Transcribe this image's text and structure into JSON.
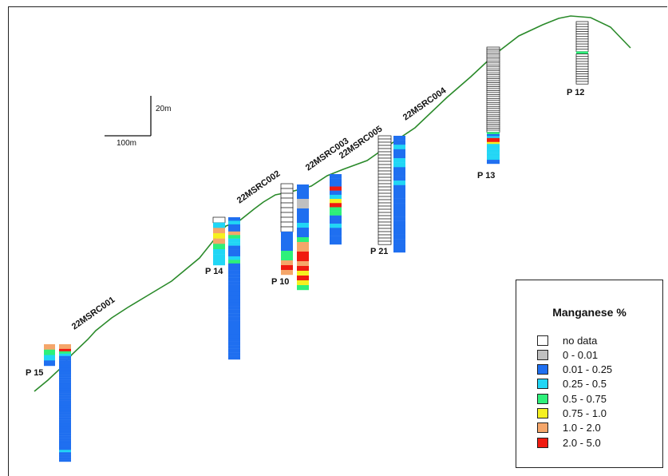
{
  "colors": {
    "no_data": "#ffffff",
    "c0": "#c0c0c0",
    "c1": "#1f6ff0",
    "c2": "#21d6f5",
    "c3": "#2ef07a",
    "c4": "#f5f020",
    "c5": "#f5a66a",
    "c6": "#f01a10",
    "ground": "#2a8a2a"
  },
  "scale": {
    "vertical_label": "20m",
    "horizontal_label": "100m"
  },
  "holes": [
    {
      "label": "22MSRC001",
      "intervals": [
        "c5",
        "c5",
        "c6",
        "c3",
        "c2",
        "c1",
        "c1",
        "c1",
        "c1",
        "c1",
        "c1",
        "c1",
        "c1",
        "c1",
        "c1",
        "c1",
        "c1",
        "c1",
        "c1",
        "c1",
        "c1",
        "c1",
        "c1",
        "c1",
        "c1",
        "c1",
        "c1",
        "c1",
        "c1",
        "c1",
        "c1",
        "c1",
        "c1",
        "c1",
        "c1",
        "c1",
        "c1",
        "c1",
        "c1",
        "c1",
        "c1",
        "c1",
        "c1",
        "c1",
        "c1",
        "c2",
        "c1",
        "c1",
        "c1",
        "c1"
      ]
    },
    {
      "label": "22MSRC002",
      "intervals": [
        "c1",
        "c2",
        "c1",
        "c1",
        "c5",
        "c3",
        "c2",
        "c2",
        "c1",
        "c1",
        "c1",
        "c2",
        "c3",
        "c1",
        "c1",
        "c1",
        "c1",
        "c1",
        "c1",
        "c1",
        "c1",
        "c1",
        "c1",
        "c1",
        "c1",
        "c1",
        "c1",
        "c1",
        "c1",
        "c1",
        "c1",
        "c1",
        "c1",
        "c1",
        "c1",
        "c1",
        "c1",
        "c1",
        "c1",
        "c1"
      ]
    },
    {
      "label": "22MSRC003",
      "intervals": [
        "c1",
        "c1",
        "c1",
        "c0",
        "c0",
        "c1",
        "c1",
        "c1",
        "c2",
        "c1",
        "c1",
        "c3",
        "c5",
        "c5",
        "c6",
        "c6",
        "c5",
        "c6",
        "c4",
        "c6",
        "c4",
        "c3"
      ]
    },
    {
      "label": "22MSRC005",
      "intervals": [
        "c1",
        "c1",
        "c1",
        "c6",
        "c1",
        "c2",
        "c4",
        "c6",
        "c3",
        "c3",
        "c1",
        "c1",
        "c2",
        "c1",
        "c1",
        "c1",
        "c1"
      ]
    },
    {
      "label": "22MSRC004",
      "intervals": [
        "c1",
        "c1",
        "c2",
        "c1",
        "c1",
        "c2",
        "c2",
        "c1",
        "c1",
        "c1",
        "c2",
        "c1",
        "c1",
        "c1",
        "c1",
        "c1",
        "c1",
        "c1",
        "c1",
        "c1",
        "c1",
        "c1",
        "c1",
        "c1",
        "c1",
        "c1"
      ]
    }
  ],
  "pits": [
    {
      "label": "P 15",
      "intervals": [
        "c5",
        "c3",
        "c2",
        "c1"
      ]
    },
    {
      "label": "P 14",
      "intervals": [
        "no_data",
        "c2",
        "c5",
        "c4",
        "c5",
        "c3",
        "c2",
        "c2",
        "c2"
      ]
    },
    {
      "label": "P 10",
      "intervals": [
        "no_data",
        "no_data",
        "no_data",
        "no_data",
        "no_data",
        "no_data",
        "no_data",
        "no_data",
        "no_data",
        "no_data",
        "c1",
        "c1",
        "c1",
        "c1",
        "c3",
        "c3",
        "c5",
        "c6",
        "c5"
      ]
    },
    {
      "label": "P 21",
      "intervals": [
        "no_data",
        "no_data",
        "no_data",
        "no_data",
        "no_data",
        "no_data",
        "no_data",
        "no_data",
        "no_data",
        "no_data",
        "no_data",
        "no_data",
        "no_data",
        "no_data",
        "no_data",
        "no_data",
        "no_data",
        "no_data",
        "no_data",
        "no_data",
        "no_data",
        "no_data",
        "no_data",
        "no_data",
        "no_data",
        "no_data",
        "no_data",
        "no_data",
        "no_data",
        "no_data",
        "no_data",
        "no_data",
        "no_data",
        "no_data"
      ]
    },
    {
      "label": "P 13",
      "intervals": [
        "no_data",
        "no_data",
        "no_data",
        "no_data",
        "no_data",
        "no_data",
        "no_data",
        "no_data",
        "no_data",
        "no_data",
        "no_data",
        "no_data",
        "no_data",
        "no_data",
        "no_data",
        "no_data",
        "no_data",
        "no_data",
        "no_data",
        "no_data",
        "no_data",
        "no_data",
        "no_data",
        "no_data",
        "no_data",
        "no_data",
        "no_data",
        "no_data",
        "no_data",
        "no_data",
        "no_data",
        "no_data",
        "no_data",
        "no_data",
        "no_data",
        "no_data",
        "no_data",
        "no_data",
        "no_data",
        "no_data",
        "no_data",
        "no_data",
        "no_data",
        "c3",
        "c1",
        "c2",
        "c6",
        "c6",
        "c4",
        "c2",
        "c2",
        "c2",
        "c2",
        "c2",
        "c2",
        "c2",
        "c2",
        "c1",
        "c1"
      ]
    },
    {
      "label": "P 12",
      "intervals": [
        "no_data",
        "no_data",
        "no_data",
        "no_data",
        "no_data",
        "no_data",
        "no_data",
        "no_data",
        "no_data",
        "no_data",
        "no_data",
        "no_data",
        "c3",
        "no_data",
        "no_data",
        "no_data",
        "no_data",
        "no_data",
        "no_data",
        "no_data",
        "no_data",
        "no_data",
        "no_data",
        "no_data",
        "no_data"
      ]
    }
  ],
  "legend": {
    "title": "Manganese %",
    "items": [
      {
        "label": "no data",
        "color": "#ffffff"
      },
      {
        "label": "0 - 0.01",
        "color": "#c0c0c0"
      },
      {
        "label": "0.01 - 0.25",
        "color": "#1f6ff0"
      },
      {
        "label": "0.25 - 0.5",
        "color": "#21d6f5"
      },
      {
        "label": "0.5 - 0.75",
        "color": "#2ef07a"
      },
      {
        "label": "0.75 - 1.0",
        "color": "#f5f020"
      },
      {
        "label": "1.0 - 2.0",
        "color": "#f5a66a"
      },
      {
        "label": "2.0 - 5.0",
        "color": "#f01a10"
      }
    ]
  }
}
